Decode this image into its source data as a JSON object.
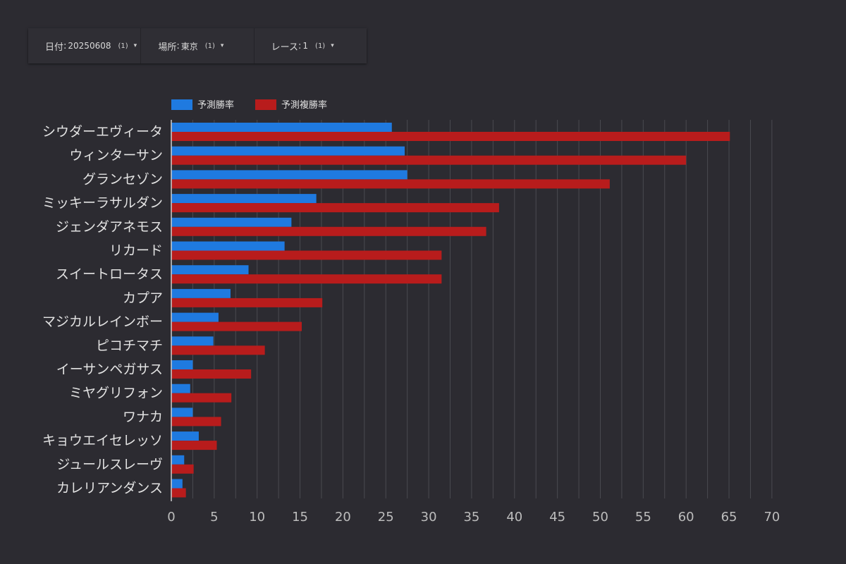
{
  "filters": [
    {
      "label": "日付",
      "value": "20250608",
      "count": "(1)",
      "caret": "▾"
    },
    {
      "label": "場所",
      "value": "東京",
      "count": "(1)",
      "caret": "▾"
    },
    {
      "label": "レース",
      "value": "1",
      "count": "(1)",
      "caret": "▾"
    }
  ],
  "colors": {
    "win": "#1f7ae0",
    "place": "#b81c1c",
    "background": "#2c2b31",
    "grid": "#4a4a50"
  },
  "chart_data": {
    "type": "bar",
    "orientation": "horizontal",
    "categories": [
      "シウダーエヴィータ",
      "ウィンターサン",
      "グランセゾン",
      "ミッキーラサルダン",
      "ジェンダアネモス",
      "リカード",
      "スイートロータス",
      "カプア",
      "マジカルレインボー",
      "ピコチマチ",
      "イーサンペガサス",
      "ミヤグリフォン",
      "ワナカ",
      "キョウエイセレッソ",
      "ジュールスレーヴ",
      "カレリアンダンス"
    ],
    "series": [
      {
        "name": "予測勝率",
        "values": [
          25.7,
          27.2,
          27.5,
          16.9,
          14.0,
          13.2,
          9.0,
          6.9,
          5.5,
          4.9,
          2.5,
          2.2,
          2.5,
          3.2,
          1.5,
          1.3
        ]
      },
      {
        "name": "予測複勝率",
        "values": [
          65.1,
          60.0,
          51.1,
          38.2,
          36.7,
          31.5,
          31.5,
          17.6,
          15.2,
          10.9,
          9.3,
          7.0,
          5.8,
          5.3,
          2.6,
          1.7
        ]
      }
    ],
    "xlim": [
      0,
      72
    ],
    "xticks": [
      0,
      5,
      10,
      15,
      20,
      25,
      30,
      35,
      40,
      45,
      50,
      55,
      60,
      65,
      70
    ],
    "grid": true,
    "legend": "top-left"
  }
}
